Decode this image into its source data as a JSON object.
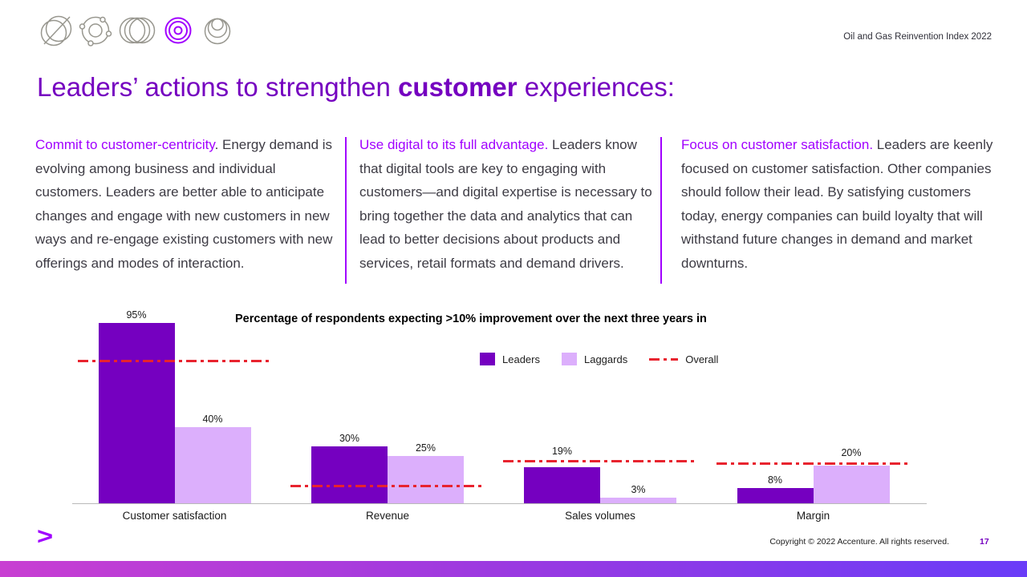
{
  "header": {
    "doc_label": "Oil and Gas Reinvention Index 2022",
    "icons": [
      "globe-strikethrough-icon",
      "orbit-nodes-icon",
      "overlapping-rings-icon",
      "bullseye-icon",
      "nested-circles-icon"
    ]
  },
  "title": {
    "prefix": "Leaders’ actions to strengthen ",
    "highlight": "customer",
    "suffix": " experiences:"
  },
  "columns": [
    {
      "lead": "Commit to customer-centricity",
      "body": ". Energy demand is evolving among business and individual customers. Leaders are better able to anticipate changes and engage with new customers in new ways and re-engage existing customers with new offerings and modes of interaction."
    },
    {
      "lead": "Use digital to its full advantage.",
      "body": " Leaders know that digital tools are key to engaging with customers—and digital expertise is necessary to bring together the data and analytics that can lead to better decisions about products and services, retail formats and demand drivers."
    },
    {
      "lead": "Focus on customer satisfaction.",
      "body": " Leaders are keenly focused on customer satisfaction. Other companies should follow their lead. By satisfying customers today, energy companies can build loyalty that will withstand future changes in demand and market downturns."
    }
  ],
  "chart_data": {
    "type": "bar",
    "title": "Percentage of respondents expecting >10% improvement over the next three years in",
    "categories": [
      "Customer satisfaction",
      "Revenue",
      "Sales volumes",
      "Margin"
    ],
    "series": [
      {
        "name": "Leaders",
        "style": "bar",
        "color": "#7500c0",
        "values": [
          95,
          30,
          19,
          8
        ]
      },
      {
        "name": "Laggards",
        "style": "bar",
        "color": "#dcaffc",
        "values": [
          40,
          25,
          3,
          20
        ]
      },
      {
        "name": "Overall",
        "style": "dashdot-line",
        "color": "#e8232e",
        "values": [
          75,
          9,
          22,
          21
        ]
      }
    ],
    "value_label_format": "{v}%",
    "ylim": [
      0,
      100
    ],
    "grid": false,
    "legend_position": "top-center"
  },
  "footer": {
    "logo_glyph": ">",
    "copyright": "Copyright © 2022 Accenture. All rights reserved.",
    "page_number": "17"
  },
  "colors": {
    "title_purple": "#7500c0",
    "lead_magenta": "#a100ff",
    "body_text": "#3d3b44",
    "leaders_bar": "#7500c0",
    "laggards_bar": "#dcaffc",
    "overall_line": "#e8232e",
    "bottom_bar_gradient": [
      "#c83fd2",
      "#6a3cf8"
    ]
  }
}
